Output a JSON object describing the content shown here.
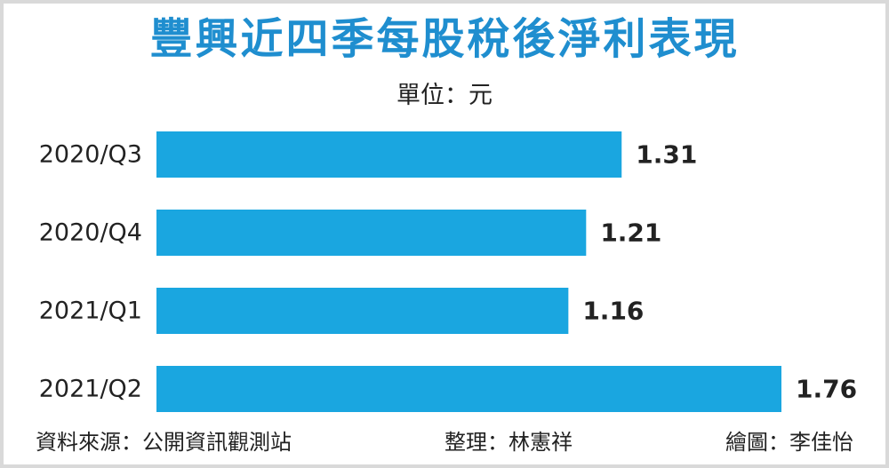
{
  "title": "豐興近四季每股稅後淨利表現",
  "unit": "單位：元",
  "footer": {
    "source": "資料來源：公開資訊觀測站",
    "editor": "整理：林憲祥",
    "artist": "繪圖：李佳怡"
  },
  "colors": {
    "title": "#1f8ecf",
    "bar": "#1aa6e0",
    "text": "#222222"
  },
  "chart_data": {
    "type": "bar",
    "orientation": "horizontal",
    "categories": [
      "2020/Q3",
      "2020/Q4",
      "2021/Q1",
      "2021/Q2"
    ],
    "values": [
      1.31,
      1.21,
      1.16,
      1.76
    ],
    "value_labels": [
      "1.31",
      "1.21",
      "1.16",
      "1.76"
    ],
    "xlim": [
      0,
      1.76
    ],
    "grid": false,
    "legend": "none"
  }
}
